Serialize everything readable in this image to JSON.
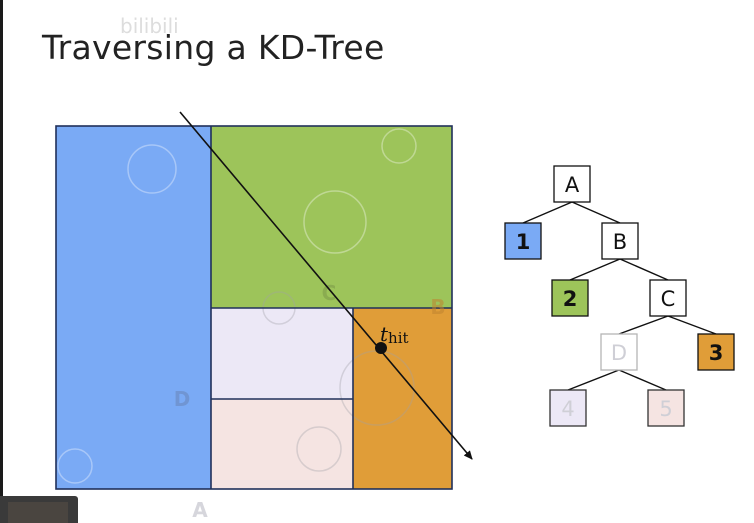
{
  "title": "Traversing a KD-Tree",
  "watermark": "bilibili",
  "watermark_left": "",
  "colors": {
    "blue": "#7aaaf5",
    "green": "#9dc45a",
    "lavender": "#ece8f6",
    "pink": "#f5e4e2",
    "orange": "#e09d38",
    "divider": "#20305a",
    "ray": "#111111",
    "faint_label": "#cfcfd6"
  },
  "scene": {
    "region_labels": {
      "D": "D",
      "C": "C",
      "B": "B",
      "A": "A"
    },
    "hit_label": "t",
    "hit_subscript": "hit"
  },
  "tree": {
    "nodes": [
      {
        "id": "A",
        "label": "A",
        "kind": "interior"
      },
      {
        "id": "leaf1",
        "label": "1",
        "kind": "leaf",
        "color": "blue"
      },
      {
        "id": "B",
        "label": "B",
        "kind": "interior"
      },
      {
        "id": "leaf2",
        "label": "2",
        "kind": "leaf",
        "color": "green"
      },
      {
        "id": "C",
        "label": "C",
        "kind": "interior"
      },
      {
        "id": "D",
        "label": "D",
        "kind": "interior-faded"
      },
      {
        "id": "leaf3",
        "label": "3",
        "kind": "leaf",
        "color": "orange"
      },
      {
        "id": "leaf4",
        "label": "4",
        "kind": "leaf-faded",
        "color": "lavender"
      },
      {
        "id": "leaf5",
        "label": "5",
        "kind": "leaf-faded",
        "color": "pink"
      }
    ],
    "edges": [
      [
        "A",
        "leaf1"
      ],
      [
        "A",
        "B"
      ],
      [
        "B",
        "leaf2"
      ],
      [
        "B",
        "C"
      ],
      [
        "C",
        "D"
      ],
      [
        "C",
        "leaf3"
      ],
      [
        "D",
        "leaf4"
      ],
      [
        "D",
        "leaf5"
      ]
    ]
  }
}
